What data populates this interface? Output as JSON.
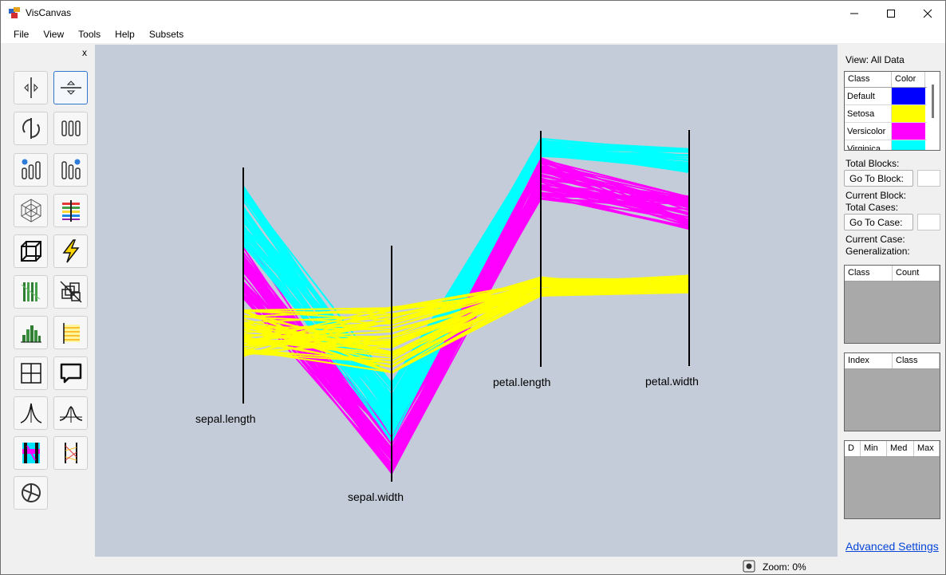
{
  "window": {
    "title": "VisCanvas",
    "minimize_label": "—",
    "maximize_label": "☐",
    "close_label": "✕"
  },
  "menu": [
    "File",
    "View",
    "Tools",
    "Help",
    "Subsets"
  ],
  "toolpanel": {
    "close_label": "x",
    "tools": [
      {
        "name": "flip-horizontal",
        "icon": "flip-horizontal-icon"
      },
      {
        "name": "flip-vertical",
        "icon": "flip-vertical-icon"
      },
      {
        "name": "rotate",
        "icon": "rotate-icon"
      },
      {
        "name": "parallel-bars",
        "icon": "parallel-bars-icon"
      },
      {
        "name": "shift-left",
        "icon": "shift-left-icon"
      },
      {
        "name": "shift-right",
        "icon": "shift-right-icon"
      },
      {
        "name": "radial",
        "icon": "radial-icon"
      },
      {
        "name": "color-bars",
        "icon": "color-bars-icon"
      },
      {
        "name": "cube",
        "icon": "cube-icon"
      },
      {
        "name": "lightning",
        "icon": "lightning-icon"
      },
      {
        "name": "green-lines",
        "icon": "green-lines-icon"
      },
      {
        "name": "hide-cubes",
        "icon": "hide-cubes-icon"
      },
      {
        "name": "histogram",
        "icon": "histogram-icon"
      },
      {
        "name": "yellow-bars",
        "icon": "yellow-bars-icon"
      },
      {
        "name": "grid",
        "icon": "grid-icon"
      },
      {
        "name": "comment",
        "icon": "comment-icon"
      },
      {
        "name": "peak",
        "icon": "peak-icon"
      },
      {
        "name": "bell-curve",
        "icon": "bell-curve-icon"
      },
      {
        "name": "highlight",
        "icon": "highlight-icon"
      },
      {
        "name": "network",
        "icon": "network-icon"
      },
      {
        "name": "reset",
        "icon": "reset-icon"
      }
    ]
  },
  "chart_data": {
    "type": "line",
    "axes": [
      "sepal.length",
      "sepal.width",
      "petal.length",
      "petal.width"
    ],
    "series": [
      {
        "name": "Versicolor",
        "color": "#ff00ff",
        "values": [
          0.58,
          0.13,
          0.8,
          0.65
        ]
      },
      {
        "name": "Virginica",
        "color": "#00ffff",
        "values": [
          0.8,
          0.3,
          0.93,
          0.87
        ]
      },
      {
        "name": "Setosa",
        "color": "#ffff00",
        "values": [
          0.3,
          0.6,
          0.34,
          0.35
        ]
      }
    ]
  },
  "rightpanel": {
    "view_label": "View: All Data",
    "class_grid": {
      "headers": [
        "Class",
        "Color"
      ],
      "rows": [
        {
          "name": "Default",
          "color": "#0000ff"
        },
        {
          "name": "Setosa",
          "color": "#ffff00"
        },
        {
          "name": "Versicolor",
          "color": "#ff00ff"
        },
        {
          "name": "Virginica",
          "color": "#00ffff"
        }
      ]
    },
    "total_blocks": "Total Blocks:",
    "goto_block": "Go To Block:",
    "current_block": "Current Block:",
    "total_cases": "Total Cases:",
    "goto_case": "Go To Case:",
    "current_case": "Current Case:",
    "generalization": "Generalization:",
    "count_grid": [
      "Class",
      "Count"
    ],
    "index_grid": [
      "Index",
      "Class"
    ],
    "stats_grid": [
      "D",
      "Min",
      "Med",
      "Max"
    ],
    "advanced_settings": "Advanced Settings"
  },
  "status": {
    "zoom": "Zoom: 0%"
  }
}
